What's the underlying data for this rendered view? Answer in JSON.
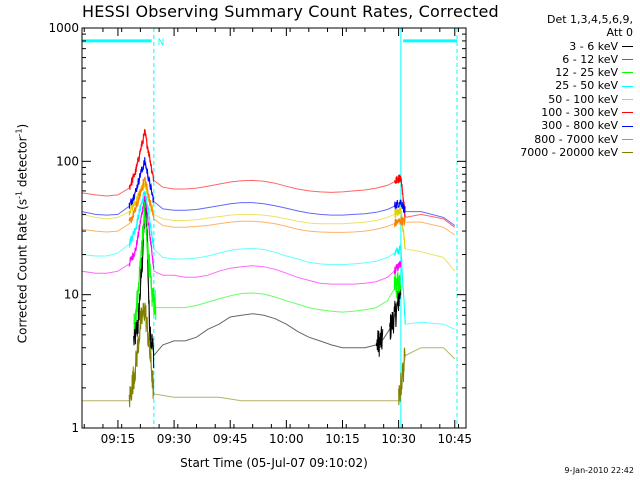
{
  "chart_data": {
    "type": "line",
    "title": "HESSI Observing Summary Count Rates, Corrected",
    "xlabel": "Start Time (05-Jul-07 09:10:02)",
    "ylabel_main": "Corrected Count Rate (s",
    "ylabel_sup1": "-1",
    "ylabel_mid": " detector",
    "ylabel_sup2": "-1",
    "ylabel_end": ")",
    "yscale": "log",
    "ylim": [
      1,
      1000
    ],
    "xlim": [
      9.09,
      10.8
    ],
    "grid": false,
    "legend_header": [
      "Det 1,3,4,5,6,9,",
      "Att 0"
    ],
    "legend_position": "top-right outside",
    "y_tick_labels": [
      "1",
      "10",
      "100",
      "1000"
    ],
    "y_ticks": [
      1,
      10,
      100,
      1000
    ],
    "x_tick_labels": [
      "09:15",
      "09:30",
      "09:45",
      "10:00",
      "10:15",
      "10:30",
      "10:45"
    ],
    "x_ticks": [
      9.25,
      9.5,
      9.75,
      10.0,
      10.25,
      10.5,
      10.75
    ],
    "annotation_label": "N",
    "night_bars": [
      [
        9.09,
        9.4
      ],
      [
        10.52,
        10.76
      ]
    ],
    "night_level": 800,
    "saa_lines": [
      9.41,
      10.76
    ],
    "day_boundary_line": 10.51,
    "series": [
      {
        "name": "3 - 6 keV",
        "color": "#000000",
        "points": [
          [
            9.32,
            4.5
          ],
          [
            9.34,
            6
          ],
          [
            9.36,
            20
          ],
          [
            9.37,
            45
          ],
          [
            9.38,
            30
          ],
          [
            9.39,
            6
          ],
          [
            9.41,
            3.5
          ],
          [
            9.45,
            4.2
          ],
          [
            9.5,
            4.5
          ],
          [
            9.55,
            4.5
          ],
          [
            9.6,
            4.8
          ],
          [
            9.65,
            5.5
          ],
          [
            9.7,
            6
          ],
          [
            9.75,
            6.8
          ],
          [
            9.8,
            7
          ],
          [
            9.85,
            7.2
          ],
          [
            9.9,
            7
          ],
          [
            9.95,
            6.6
          ],
          [
            10.0,
            6
          ],
          [
            10.05,
            5.3
          ],
          [
            10.1,
            4.8
          ],
          [
            10.15,
            4.5
          ],
          [
            10.2,
            4.2
          ],
          [
            10.25,
            4
          ],
          [
            10.3,
            4
          ],
          [
            10.35,
            4
          ],
          [
            10.4,
            4.2
          ],
          [
            10.43,
            4.6
          ],
          [
            10.46,
            5.5
          ],
          [
            10.49,
            7.5
          ],
          [
            10.51,
            11
          ]
        ]
      },
      {
        "name": "6 - 12 keV",
        "color": "#ff00ff",
        "points": [
          [
            9.09,
            15
          ],
          [
            9.15,
            14.5
          ],
          [
            9.2,
            14.5
          ],
          [
            9.25,
            15
          ],
          [
            9.3,
            17
          ],
          [
            9.33,
            22
          ],
          [
            9.35,
            35
          ],
          [
            9.37,
            55
          ],
          [
            9.39,
            30
          ],
          [
            9.41,
            15
          ],
          [
            9.45,
            14
          ],
          [
            9.5,
            14
          ],
          [
            9.55,
            13.5
          ],
          [
            9.6,
            13.5
          ],
          [
            9.65,
            14
          ],
          [
            9.7,
            15
          ],
          [
            9.75,
            15.8
          ],
          [
            9.8,
            16.2
          ],
          [
            9.85,
            16.5
          ],
          [
            9.9,
            16.2
          ],
          [
            9.95,
            15.5
          ],
          [
            10.0,
            14.5
          ],
          [
            10.05,
            13.5
          ],
          [
            10.1,
            12.8
          ],
          [
            10.15,
            12.2
          ],
          [
            10.2,
            12
          ],
          [
            10.25,
            12
          ],
          [
            10.3,
            12
          ],
          [
            10.35,
            12.2
          ],
          [
            10.4,
            12.5
          ],
          [
            10.45,
            13.5
          ],
          [
            10.48,
            15
          ],
          [
            10.51,
            17
          ]
        ]
      },
      {
        "name": "12 - 25 keV",
        "color": "#00ff00",
        "points": [
          [
            9.32,
            6
          ],
          [
            9.34,
            10
          ],
          [
            9.35,
            18
          ],
          [
            9.37,
            40
          ],
          [
            9.38,
            25
          ],
          [
            9.4,
            10
          ],
          [
            9.42,
            8
          ],
          [
            9.5,
            8
          ],
          [
            9.55,
            8
          ],
          [
            9.6,
            8.3
          ],
          [
            9.65,
            8.8
          ],
          [
            9.7,
            9.3
          ],
          [
            9.75,
            9.8
          ],
          [
            9.8,
            10.2
          ],
          [
            9.85,
            10.3
          ],
          [
            9.9,
            10.1
          ],
          [
            9.95,
            9.6
          ],
          [
            10.0,
            9
          ],
          [
            10.05,
            8.5
          ],
          [
            10.1,
            8
          ],
          [
            10.15,
            7.7
          ],
          [
            10.2,
            7.5
          ],
          [
            10.25,
            7.4
          ],
          [
            10.3,
            7.5
          ],
          [
            10.35,
            7.7
          ],
          [
            10.4,
            8
          ],
          [
            10.45,
            9
          ],
          [
            10.48,
            11
          ],
          [
            10.51,
            13.5
          ]
        ]
      },
      {
        "name": "25 - 50 keV",
        "color": "#00ffff",
        "points": [
          [
            9.09,
            20
          ],
          [
            9.15,
            19.5
          ],
          [
            9.2,
            19.5
          ],
          [
            9.25,
            20.5
          ],
          [
            9.3,
            24
          ],
          [
            9.33,
            32
          ],
          [
            9.35,
            45
          ],
          [
            9.37,
            60
          ],
          [
            9.39,
            38
          ],
          [
            9.41,
            22
          ],
          [
            9.45,
            19
          ],
          [
            9.5,
            18.5
          ],
          [
            9.55,
            18.5
          ],
          [
            9.6,
            18.8
          ],
          [
            9.65,
            19.5
          ],
          [
            9.7,
            20.5
          ],
          [
            9.75,
            21.5
          ],
          [
            9.8,
            22
          ],
          [
            9.85,
            22.2
          ],
          [
            9.9,
            21.8
          ],
          [
            9.95,
            20.8
          ],
          [
            10.0,
            19.5
          ],
          [
            10.05,
            18.5
          ],
          [
            10.1,
            17.5
          ],
          [
            10.15,
            17
          ],
          [
            10.2,
            16.8
          ],
          [
            10.25,
            16.8
          ],
          [
            10.3,
            17
          ],
          [
            10.35,
            17.3
          ],
          [
            10.4,
            17.8
          ],
          [
            10.45,
            19
          ],
          [
            10.48,
            20.5
          ],
          [
            10.51,
            22
          ],
          [
            10.53,
            6
          ],
          [
            10.6,
            6.2
          ],
          [
            10.7,
            6
          ],
          [
            10.75,
            5.5
          ]
        ]
      },
      {
        "name": "50 - 100 keV",
        "color": "#e0d000",
        "points": [
          [
            9.09,
            40
          ],
          [
            9.15,
            38
          ],
          [
            9.2,
            37
          ],
          [
            9.25,
            38
          ],
          [
            9.3,
            42
          ],
          [
            9.33,
            50
          ],
          [
            9.35,
            60
          ],
          [
            9.37,
            68
          ],
          [
            9.39,
            50
          ],
          [
            9.41,
            40
          ],
          [
            9.45,
            37
          ],
          [
            9.5,
            36
          ],
          [
            9.55,
            36
          ],
          [
            9.6,
            36.5
          ],
          [
            9.65,
            37.5
          ],
          [
            9.7,
            38.5
          ],
          [
            9.75,
            39.5
          ],
          [
            9.8,
            40
          ],
          [
            9.85,
            40
          ],
          [
            9.9,
            39.5
          ],
          [
            9.95,
            38.5
          ],
          [
            10.0,
            37
          ],
          [
            10.05,
            35.5
          ],
          [
            10.1,
            34.5
          ],
          [
            10.15,
            34
          ],
          [
            10.2,
            34
          ],
          [
            10.25,
            34
          ],
          [
            10.3,
            34.5
          ],
          [
            10.35,
            35
          ],
          [
            10.4,
            36
          ],
          [
            10.45,
            38
          ],
          [
            10.48,
            40
          ],
          [
            10.51,
            42
          ],
          [
            10.53,
            22
          ],
          [
            10.6,
            21
          ],
          [
            10.7,
            19
          ],
          [
            10.75,
            15
          ]
        ]
      },
      {
        "name": "100 - 300 keV",
        "color": "#ff0000",
        "points": [
          [
            9.09,
            58
          ],
          [
            9.15,
            56
          ],
          [
            9.2,
            55
          ],
          [
            9.25,
            56
          ],
          [
            9.3,
            63
          ],
          [
            9.33,
            85
          ],
          [
            9.35,
            120
          ],
          [
            9.37,
            165
          ],
          [
            9.39,
            110
          ],
          [
            9.41,
            72
          ],
          [
            9.45,
            64
          ],
          [
            9.5,
            62
          ],
          [
            9.55,
            62
          ],
          [
            9.6,
            63
          ],
          [
            9.65,
            65
          ],
          [
            9.7,
            67.5
          ],
          [
            9.75,
            70
          ],
          [
            9.8,
            71.5
          ],
          [
            9.85,
            72
          ],
          [
            9.9,
            71
          ],
          [
            9.95,
            68.5
          ],
          [
            10.0,
            65
          ],
          [
            10.05,
            62
          ],
          [
            10.1,
            60
          ],
          [
            10.15,
            59
          ],
          [
            10.2,
            58.5
          ],
          [
            10.25,
            59
          ],
          [
            10.3,
            60
          ],
          [
            10.35,
            61
          ],
          [
            10.4,
            63
          ],
          [
            10.45,
            66
          ],
          [
            10.48,
            70
          ],
          [
            10.51,
            76
          ],
          [
            10.53,
            38
          ],
          [
            10.6,
            40
          ],
          [
            10.7,
            37
          ],
          [
            10.75,
            32
          ]
        ]
      },
      {
        "name": "300 - 800 keV",
        "color": "#0000ff",
        "points": [
          [
            9.09,
            42
          ],
          [
            9.15,
            40
          ],
          [
            9.2,
            39.5
          ],
          [
            9.25,
            40
          ],
          [
            9.3,
            46
          ],
          [
            9.33,
            60
          ],
          [
            9.35,
            80
          ],
          [
            9.37,
            100
          ],
          [
            9.39,
            70
          ],
          [
            9.41,
            50
          ],
          [
            9.45,
            44
          ],
          [
            9.5,
            43
          ],
          [
            9.55,
            43
          ],
          [
            9.6,
            43.5
          ],
          [
            9.65,
            45
          ],
          [
            9.7,
            46.5
          ],
          [
            9.75,
            48
          ],
          [
            9.8,
            49
          ],
          [
            9.85,
            49
          ],
          [
            9.9,
            48
          ],
          [
            9.95,
            46.5
          ],
          [
            10.0,
            44.5
          ],
          [
            10.05,
            42.5
          ],
          [
            10.1,
            41
          ],
          [
            10.15,
            40
          ],
          [
            10.2,
            39.5
          ],
          [
            10.25,
            39.5
          ],
          [
            10.3,
            40
          ],
          [
            10.35,
            40.5
          ],
          [
            10.4,
            41.5
          ],
          [
            10.45,
            43.5
          ],
          [
            10.48,
            46
          ],
          [
            10.51,
            50
          ],
          [
            10.53,
            42
          ],
          [
            10.6,
            42
          ],
          [
            10.7,
            38
          ],
          [
            10.75,
            33
          ]
        ]
      },
      {
        "name": "800 - 7000 keV",
        "color": "#ff8000",
        "points": [
          [
            9.09,
            31
          ],
          [
            9.15,
            30
          ],
          [
            9.2,
            29.5
          ],
          [
            9.25,
            30
          ],
          [
            9.3,
            34
          ],
          [
            9.33,
            44
          ],
          [
            9.35,
            58
          ],
          [
            9.37,
            75
          ],
          [
            9.39,
            52
          ],
          [
            9.41,
            37
          ],
          [
            9.45,
            33
          ],
          [
            9.5,
            32
          ],
          [
            9.55,
            32
          ],
          [
            9.6,
            32.5
          ],
          [
            9.65,
            33
          ],
          [
            9.7,
            34
          ],
          [
            9.75,
            35
          ],
          [
            9.8,
            35.5
          ],
          [
            9.85,
            35.5
          ],
          [
            9.9,
            35
          ],
          [
            9.95,
            34
          ],
          [
            10.0,
            32.5
          ],
          [
            10.05,
            31
          ],
          [
            10.1,
            30
          ],
          [
            10.15,
            29.5
          ],
          [
            10.2,
            29.3
          ],
          [
            10.25,
            29.3
          ],
          [
            10.3,
            29.5
          ],
          [
            10.35,
            30
          ],
          [
            10.4,
            31
          ],
          [
            10.45,
            32.5
          ],
          [
            10.48,
            34
          ],
          [
            10.51,
            36
          ],
          [
            10.53,
            35
          ],
          [
            10.6,
            35
          ],
          [
            10.7,
            32
          ],
          [
            10.75,
            28
          ]
        ]
      },
      {
        "name": "7000 - 20000 keV",
        "color": "#808000",
        "points": [
          [
            9.09,
            1.6
          ],
          [
            9.15,
            1.6
          ],
          [
            9.2,
            1.6
          ],
          [
            9.25,
            1.6
          ],
          [
            9.3,
            1.6
          ],
          [
            9.33,
            3
          ],
          [
            9.35,
            6
          ],
          [
            9.37,
            8
          ],
          [
            9.39,
            4
          ],
          [
            9.41,
            1.8
          ],
          [
            9.5,
            1.7
          ],
          [
            9.6,
            1.7
          ],
          [
            9.7,
            1.7
          ],
          [
            9.8,
            1.6
          ],
          [
            9.9,
            1.6
          ],
          [
            10.0,
            1.6
          ],
          [
            10.1,
            1.6
          ],
          [
            10.2,
            1.6
          ],
          [
            10.3,
            1.6
          ],
          [
            10.4,
            1.6
          ],
          [
            10.5,
            1.6
          ],
          [
            10.53,
            3.5
          ],
          [
            10.6,
            4
          ],
          [
            10.7,
            4
          ],
          [
            10.75,
            3.3
          ]
        ]
      }
    ]
  },
  "footer_stamp": "9-Jan-2010 22:42"
}
